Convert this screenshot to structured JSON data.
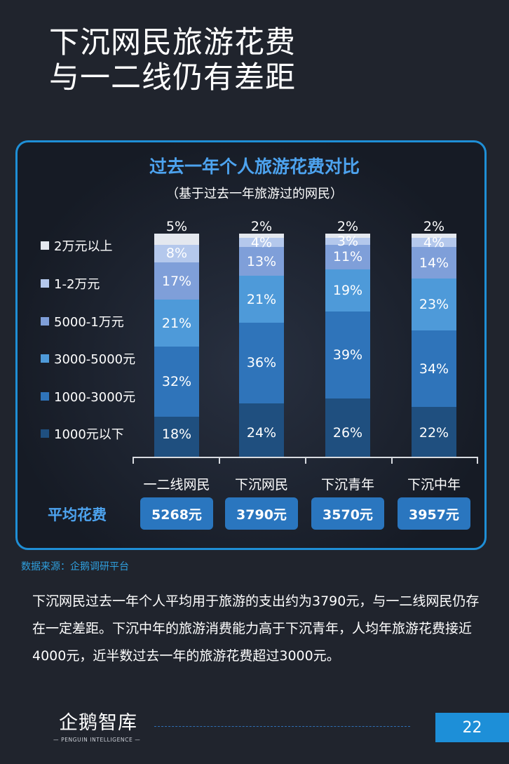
{
  "page_title": {
    "line1": "下沉网民旅游花费",
    "line2": "与一二线仍有差距"
  },
  "chart_data": {
    "type": "bar",
    "stacked": true,
    "title": "过去一年个人旅游花费对比",
    "subtitle": "（基于过去一年旅游过的网民）",
    "categories": [
      "一二线网民",
      "下沉网民",
      "下沉青年",
      "下沉中年"
    ],
    "series": [
      {
        "name": "1000元以下",
        "color": "#1f4f7f",
        "values": [
          18,
          24,
          26,
          22
        ]
      },
      {
        "name": "1000-3000元",
        "color": "#2f74ba",
        "values": [
          32,
          36,
          39,
          34
        ]
      },
      {
        "name": "3000-5000元",
        "color": "#4e9ad9",
        "values": [
          21,
          21,
          19,
          23
        ]
      },
      {
        "name": "5000-1万元",
        "color": "#7f9fd9",
        "values": [
          17,
          13,
          11,
          14
        ]
      },
      {
        "name": "1-2万元",
        "color": "#b4c8ec",
        "values": [
          8,
          4,
          3,
          4
        ]
      },
      {
        "name": "2万元以上",
        "color": "#e4e8ef",
        "values": [
          5,
          2,
          2,
          2
        ]
      }
    ],
    "value_suffix": "%",
    "legend_position": "left"
  },
  "average": {
    "label": "平均花费",
    "values": [
      "5268元",
      "3790元",
      "3570元",
      "3957元"
    ]
  },
  "source": "数据来源：企鹅调研平台",
  "body_text": "下沉网民过去一年个人平均用于旅游的支出约为3790元，与一二线网民仍存在一定差距。下沉中年的旅游消费能力高于下沉青年，人均年旅游花费接近4000元，近半数过去一年的旅游花费超过3000元。",
  "logo": {
    "name": "企鹅智库",
    "sub": "— PENGUIN INTELLIGENCE —"
  },
  "page_number": "22"
}
